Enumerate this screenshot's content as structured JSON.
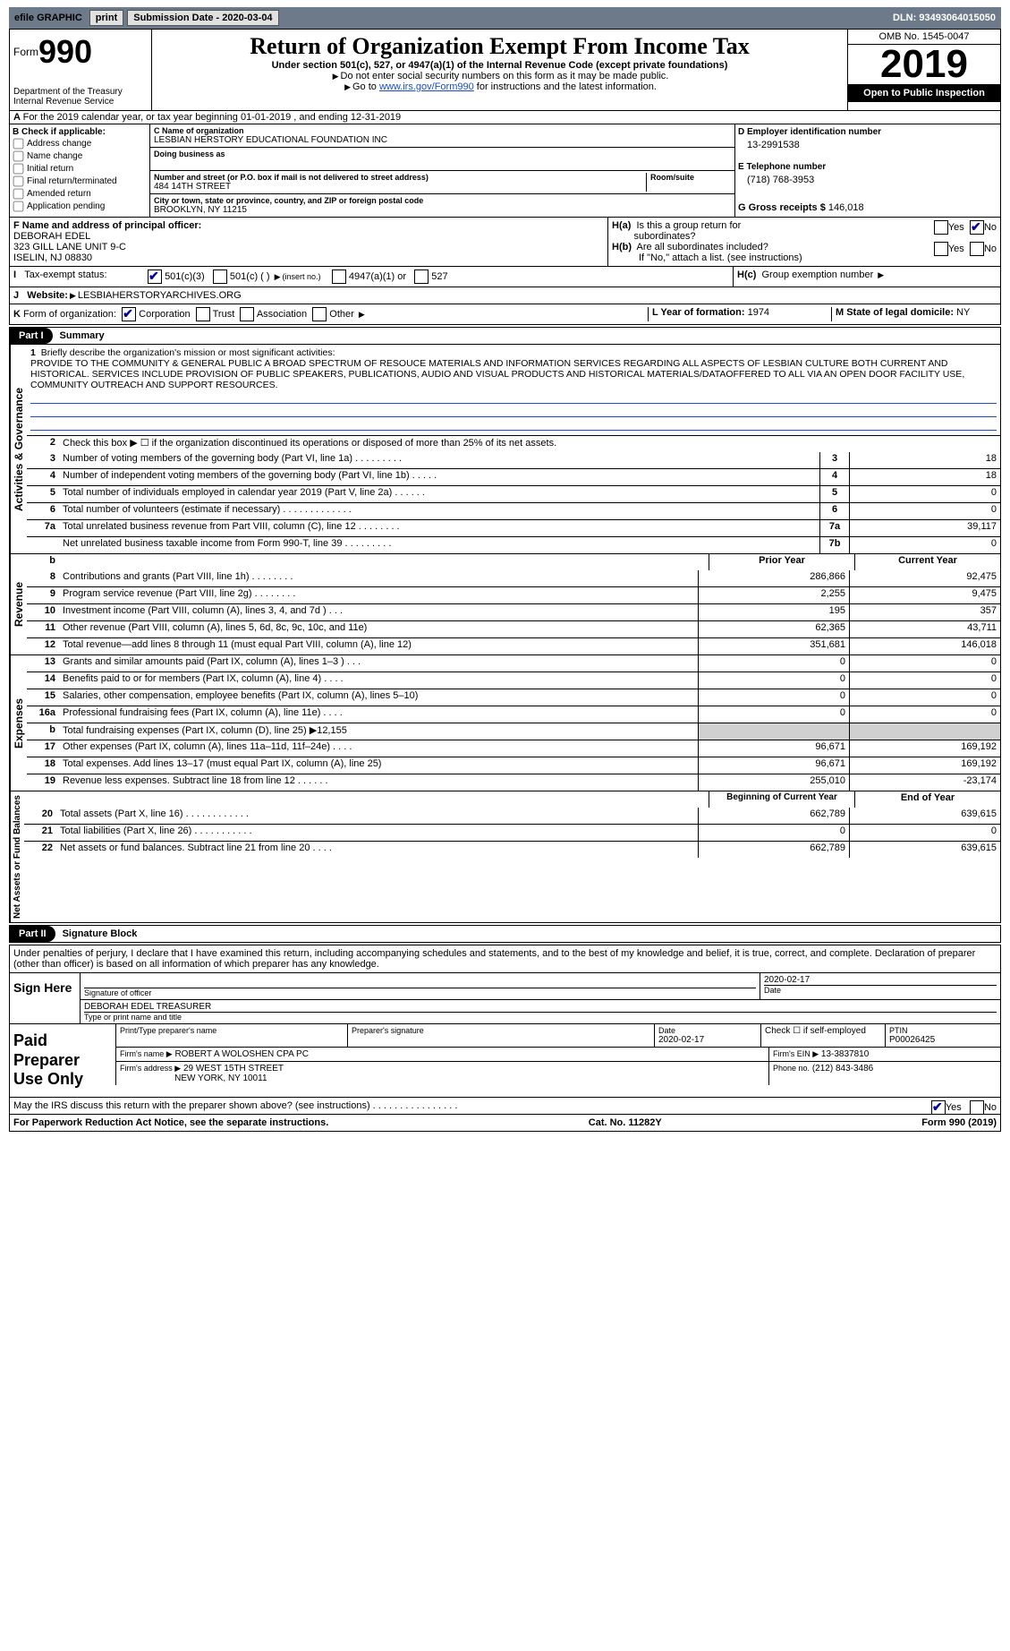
{
  "topbar": {
    "efile": "efile GRAPHIC",
    "print": "print",
    "subdate_label": "Submission Date - ",
    "subdate": "2020-03-04",
    "dln_label": "DLN: ",
    "dln": "93493064015050"
  },
  "header": {
    "form_label": "Form",
    "form_number": "990",
    "dept": "Department of the Treasury\nInternal Revenue Service",
    "title": "Return of Organization Exempt From Income Tax",
    "sub1": "Under section 501(c), 527, or 4947(a)(1) of the Internal Revenue Code (except private foundations)",
    "sub2": "Do not enter social security numbers on this form as it may be made public.",
    "sub3_a": "Go to ",
    "sub3_link": "www.irs.gov/Form990",
    "sub3_b": " for instructions and the latest information.",
    "omb": "OMB No. 1545-0047",
    "year": "2019",
    "openpub": "Open to Public Inspection"
  },
  "rowA": {
    "text": "For the 2019 calendar year, or tax year beginning 01-01-2019    , and ending 12-31-2019"
  },
  "boxB": {
    "title": "B Check if applicable:",
    "items": [
      "Address change",
      "Name change",
      "Initial return",
      "Final return/terminated",
      "Amended return",
      "Application pending"
    ]
  },
  "boxC": {
    "label": "C Name of organization",
    "name": "LESBIAN HERSTORY EDUCATIONAL FOUNDATION INC",
    "dba_label": "Doing business as",
    "addr_label": "Number and street (or P.O. box if mail is not delivered to street address)",
    "room_label": "Room/suite",
    "addr": "484 14TH STREET",
    "city_label": "City or town, state or province, country, and ZIP or foreign postal code",
    "city": "BROOKLYN, NY  11215"
  },
  "boxD": {
    "label": "D Employer identification number",
    "value": "13-2991538"
  },
  "boxE": {
    "label": "E Telephone number",
    "value": "(718) 768-3953"
  },
  "boxG": {
    "label": "G Gross receipts $",
    "value": "146,018"
  },
  "boxF": {
    "label": "F  Name and address of principal officer:",
    "name": "DEBORAH EDEL",
    "addr1": "323 GILL LANE UNIT 9-C",
    "addr2": "ISELIN, NJ  08830"
  },
  "boxH": {
    "a_label": "H(a)  Is this a group return for subordinates?",
    "b_label": "H(b)  Are all subordinates included?",
    "note": "If \"No,\" attach a list. (see instructions)",
    "c_label": "H(c)  Group exemption number",
    "yes": "Yes",
    "no": "No"
  },
  "boxI": {
    "label": "Tax-exempt status:",
    "opt1": "501(c)(3)",
    "opt2": "501(c) (   )",
    "opt2_note": "(insert no.)",
    "opt3": "4947(a)(1) or",
    "opt4": "527"
  },
  "boxJ": {
    "label": "Website:",
    "value": "LESBIAHERSTORYARCHIVES.ORG"
  },
  "boxK": {
    "label": "Form of organization:",
    "opts": [
      "Corporation",
      "Trust",
      "Association",
      "Other"
    ]
  },
  "boxL": {
    "label": "L Year of formation:",
    "value": "1974"
  },
  "boxM": {
    "label": "M State of legal domicile:",
    "value": "NY"
  },
  "partI": {
    "tag": "Part I",
    "title": "Summary",
    "tab1": "Activities & Governance",
    "tab2": "Revenue",
    "tab3": "Expenses",
    "tab4": "Net Assets or Fund Balances",
    "line1_label": "Briefly describe the organization's mission or most significant activities:",
    "line1_text": "PROVIDE TO THE COMMUNITY & GENERAL PUBLIC A BROAD SPECTRUM OF RESOUCE MATERIALS AND INFORMATION SERVICES REGARDING ALL ASPECTS OF LESBIAN CULTURE BOTH CURRENT AND HISTORICAL. SERVICES INCLUDE PROVISION OF PUBLIC SPEAKERS, PUBLICATIONS, AUDIO AND VISUAL PRODUCTS AND HISTORICAL MATERIALS/DATAOFFERED TO ALL VIA AN OPEN DOOR FACILITY USE, COMMUNITY OUTREACH AND SUPPORT RESOURCES.",
    "line2": "Check this box ▶ ☐  if the organization discontinued its operations or disposed of more than 25% of its net assets.",
    "rows": [
      {
        "n": "3",
        "t": "Number of voting members of the governing body (Part VI, line 1a)  .   .   .   .   .   .   .   .   .",
        "k": "3",
        "v": "18"
      },
      {
        "n": "4",
        "t": "Number of independent voting members of the governing body (Part VI, line 1b)  .   .   .   .   .",
        "k": "4",
        "v": "18"
      },
      {
        "n": "5",
        "t": "Total number of individuals employed in calendar year 2019 (Part V, line 2a)  .   .   .   .   .   .",
        "k": "5",
        "v": "0"
      },
      {
        "n": "6",
        "t": "Total number of volunteers (estimate if necessary)   .   .   .   .   .   .   .   .   .   .   .   .   .",
        "k": "6",
        "v": "0"
      },
      {
        "n": "7a",
        "t": "Total unrelated business revenue from Part VIII, column (C), line 12  .   .   .   .   .   .   .   .",
        "k": "7a",
        "v": "39,117"
      },
      {
        "n": "",
        "t": "Net unrelated business taxable income from Form 990-T, line 39   .   .   .   .   .   .   .   .   .",
        "k": "7b",
        "v": "0"
      }
    ],
    "hdr_b": "b",
    "prior": "Prior Year",
    "current": "Current Year",
    "rev": [
      {
        "n": "8",
        "t": "Contributions and grants (Part VIII, line 1h)   .   .   .   .   .   .   .   .",
        "p": "286,866",
        "c": "92,475"
      },
      {
        "n": "9",
        "t": "Program service revenue (Part VIII, line 2g)   .   .   .   .   .   .   .   .",
        "p": "2,255",
        "c": "9,475"
      },
      {
        "n": "10",
        "t": "Investment income (Part VIII, column (A), lines 3, 4, and 7d )   .   .   .",
        "p": "195",
        "c": "357"
      },
      {
        "n": "11",
        "t": "Other revenue (Part VIII, column (A), lines 5, 6d, 8c, 9c, 10c, and 11e)",
        "p": "62,365",
        "c": "43,711"
      },
      {
        "n": "12",
        "t": "Total revenue—add lines 8 through 11 (must equal Part VIII, column (A), line 12)",
        "p": "351,681",
        "c": "146,018"
      }
    ],
    "exp": [
      {
        "n": "13",
        "t": "Grants and similar amounts paid (Part IX, column (A), lines 1–3 )   .   .   .",
        "p": "0",
        "c": "0"
      },
      {
        "n": "14",
        "t": "Benefits paid to or for members (Part IX, column (A), line 4)   .   .   .   .",
        "p": "0",
        "c": "0"
      },
      {
        "n": "15",
        "t": "Salaries, other compensation, employee benefits (Part IX, column (A), lines 5–10)",
        "p": "0",
        "c": "0"
      },
      {
        "n": "16a",
        "t": "Professional fundraising fees (Part IX, column (A), line 11e)   .   .   .   .",
        "p": "0",
        "c": "0"
      },
      {
        "n": "b",
        "t": "Total fundraising expenses (Part IX, column (D), line 25) ▶12,155",
        "p": "",
        "c": ""
      },
      {
        "n": "17",
        "t": "Other expenses (Part IX, column (A), lines 11a–11d, 11f–24e)   .   .   .   .",
        "p": "96,671",
        "c": "169,192"
      },
      {
        "n": "18",
        "t": "Total expenses. Add lines 13–17 (must equal Part IX, column (A), line 25)",
        "p": "96,671",
        "c": "169,192"
      },
      {
        "n": "19",
        "t": "Revenue less expenses. Subtract line 18 from line 12   .   .   .   .   .   .",
        "p": "255,010",
        "c": "-23,174"
      }
    ],
    "na_hdr1": "Beginning of Current Year",
    "na_hdr2": "End of Year",
    "na": [
      {
        "n": "20",
        "t": "Total assets (Part X, line 16)   .   .   .   .   .   .   .   .   .   .   .   .",
        "p": "662,789",
        "c": "639,615"
      },
      {
        "n": "21",
        "t": "Total liabilities (Part X, line 26)   .   .   .   .   .   .   .   .   .   .   .",
        "p": "0",
        "c": "0"
      },
      {
        "n": "22",
        "t": "Net assets or fund balances. Subtract line 21 from line 20   .   .   .   .",
        "p": "662,789",
        "c": "639,615"
      }
    ]
  },
  "partII": {
    "tag": "Part II",
    "title": "Signature Block",
    "decl": "Under penalties of perjury, I declare that I have examined this return, including accompanying schedules and statements, and to the best of my knowledge and belief, it is true, correct, and complete. Declaration of preparer (other than officer) is based on all information of which preparer has any knowledge.",
    "sign_here": "Sign Here",
    "sig_officer_label": "Signature of officer",
    "sig_date": "2020-02-17",
    "date_label": "Date",
    "sig_name": "DEBORAH EDEL  TREASURER",
    "type_label": "Type or print name and title",
    "paid": "Paid Preparer Use Only",
    "prep_name_label": "Print/Type preparer's name",
    "prep_sig_label": "Preparer's signature",
    "prep_date": "2020-02-17",
    "prep_check": "Check ☐  if self-employed",
    "ptin_label": "PTIN",
    "ptin": "P00026425",
    "firm_name_label": "Firm's name    ▶",
    "firm_name": "ROBERT A WOLOSHEN CPA PC",
    "firm_ein_label": "Firm's EIN ▶",
    "firm_ein": "13-3837810",
    "firm_addr_label": "Firm's address ▶",
    "firm_addr1": "29 WEST 15TH STREET",
    "firm_addr2": "NEW YORK, NY  10011",
    "firm_phone_label": "Phone no.",
    "firm_phone": "(212) 843-3486",
    "may_irs": "May the IRS discuss this return with the preparer shown above? (see instructions)   .   .   .   .   .   .   .   .   .   .   .   .   .   .   .   .",
    "yes": "Yes",
    "no": "No"
  },
  "footer": {
    "left": "For Paperwork Reduction Act Notice, see the separate instructions.",
    "mid": "Cat. No. 11282Y",
    "right_a": "Form ",
    "right_b": "990",
    "right_c": " (2019)"
  }
}
